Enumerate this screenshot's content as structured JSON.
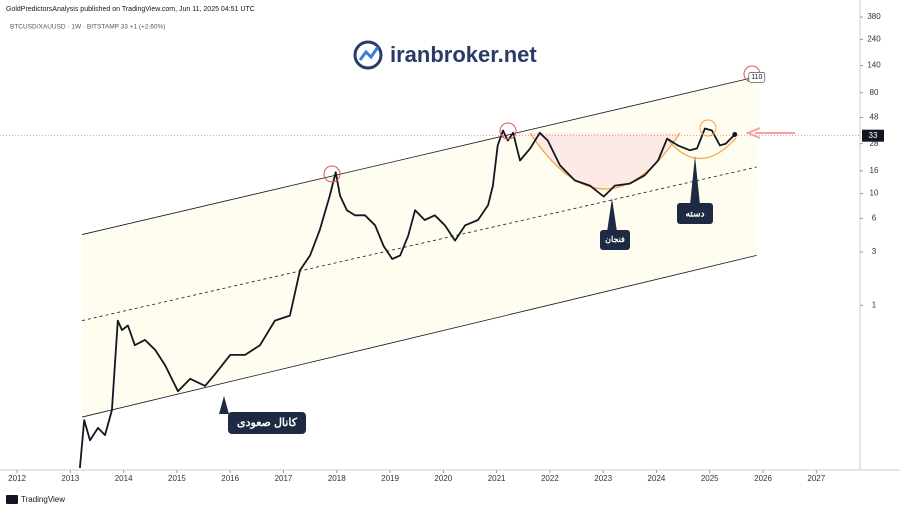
{
  "chart_data": {
    "type": "line",
    "header": "GoldPredictorsAnalysis published on TradingView.com, Jun 11, 2025 04:51 UTC",
    "symbol_line": "BTCUSD/XAUUSD · 1W · BITSTAMP  33  +1 (+2.60%)",
    "watermark": "iranbroker.net",
    "footer": "TradingView",
    "log_scale": true,
    "xlim": [
      2011.68,
      2027.82
    ],
    "xticks": [
      2012,
      2013,
      2014,
      2015,
      2016,
      2017,
      2018,
      2019,
      2020,
      2021,
      2022,
      2023,
      2024,
      2025,
      2026,
      2027
    ],
    "ylim": [
      0.035,
      440
    ],
    "yticks": [
      1,
      3,
      6,
      10,
      16,
      28,
      48,
      80,
      140,
      240,
      380
    ],
    "series": [
      {
        "color": "#131722",
        "x": [
          2013.18,
          2013.26,
          2013.37,
          2013.52,
          2013.65,
          2013.78,
          2013.89,
          2013.97,
          2014.08,
          2014.21,
          2014.4,
          2014.59,
          2014.78,
          2015.02,
          2015.25,
          2015.53,
          2015.71,
          2016.0,
          2016.28,
          2016.56,
          2016.84,
          2017.12,
          2017.31,
          2017.5,
          2017.68,
          2017.87,
          2017.98,
          2018.06,
          2018.19,
          2018.34,
          2018.53,
          2018.72,
          2018.88,
          2019.04,
          2019.19,
          2019.34,
          2019.47,
          2019.65,
          2019.84,
          2020.03,
          2020.22,
          2020.41,
          2020.65,
          2020.84,
          2020.93,
          2021.02,
          2021.12,
          2021.21,
          2021.31,
          2021.44,
          2021.63,
          2021.81,
          2021.96,
          2022.19,
          2022.47,
          2022.75,
          2023.01,
          2023.22,
          2023.5,
          2023.78,
          2024.03,
          2024.2,
          2024.4,
          2024.63,
          2024.76,
          2024.91,
          2025.04,
          2025.19,
          2025.3,
          2025.47
        ],
        "values": [
          0.035,
          0.094,
          0.062,
          0.08,
          0.069,
          0.115,
          0.73,
          0.6,
          0.66,
          0.44,
          0.49,
          0.4,
          0.29,
          0.17,
          0.22,
          0.19,
          0.24,
          0.36,
          0.36,
          0.44,
          0.73,
          0.81,
          2.06,
          2.8,
          4.7,
          9.6,
          15.5,
          9.6,
          7.1,
          6.4,
          6.4,
          5.2,
          3.4,
          2.6,
          2.8,
          4.2,
          7.1,
          5.8,
          6.4,
          5.2,
          3.8,
          5.2,
          5.8,
          7.9,
          11.8,
          27,
          36.7,
          29.8,
          35,
          19.8,
          25.4,
          35,
          29.8,
          17.9,
          13.1,
          11.8,
          9.4,
          11.8,
          12.3,
          14.6,
          19.8,
          31,
          27,
          24.4,
          25.4,
          38.3,
          36.7,
          27,
          28,
          33.8
        ]
      }
    ],
    "trend_lines": [
      {
        "style": "solid",
        "x": [
          2013.22,
          2025.94
        ],
        "values": [
          4.3,
          113
        ]
      },
      {
        "style": "dashed",
        "x": [
          2013.22,
          2025.88
        ],
        "values": [
          0.73,
          17.3
        ]
      },
      {
        "style": "solid",
        "x": [
          2013.22,
          2025.88
        ],
        "values": [
          0.1,
          2.8
        ]
      }
    ],
    "last_price": 33,
    "target_label": 110,
    "annotations": [
      "کانال صعودی",
      "فنجان",
      "دسته"
    ]
  }
}
